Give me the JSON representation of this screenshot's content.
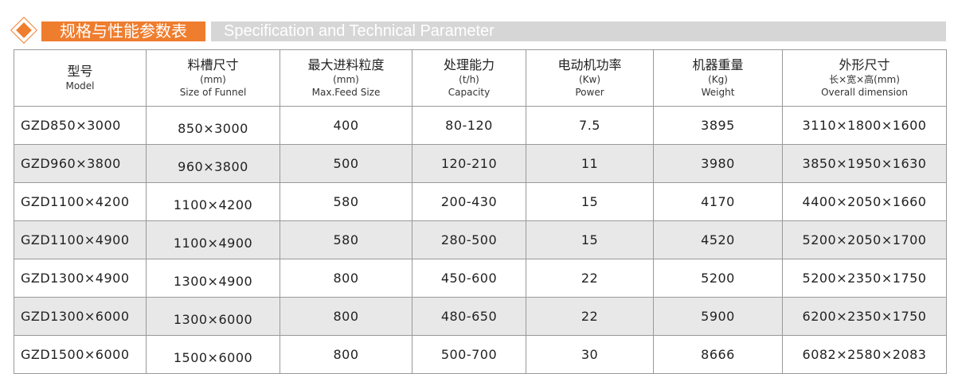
{
  "header": {
    "title_cn": "规格与性能参数表",
    "title_en": "Specification and Technical Parameter",
    "accent": "#ef7d2e"
  },
  "columns": [
    {
      "cn": "型号",
      "unit": "",
      "en": "Model"
    },
    {
      "cn": "料槽尺寸",
      "unit": "(mm)",
      "en": "Size of Funnel"
    },
    {
      "cn": "最大进料粒度",
      "unit": "(mm)",
      "en": "Max.Feed Size"
    },
    {
      "cn": "处理能力",
      "unit": "(t/h)",
      "en": "Capacity"
    },
    {
      "cn": "电动机功率",
      "unit": "(Kw)",
      "en": "Power"
    },
    {
      "cn": "机器重量",
      "unit": "(Kg)",
      "en": "Weight"
    },
    {
      "cn": "外形尺寸",
      "unit": "长×宽×高(mm)",
      "en": "Overall dimension"
    }
  ],
  "rows": [
    [
      "GZD850×3000",
      "850×3000",
      "400",
      "80-120",
      "7.5",
      "3895",
      "3110×1800×1600"
    ],
    [
      "GZD960×3800",
      "960×3800",
      "500",
      "120-210",
      "11",
      "3980",
      "3850×1950×1630"
    ],
    [
      "GZD1100×4200",
      "1100×4200",
      "580",
      "200-430",
      "15",
      "4170",
      "4400×2050×1660"
    ],
    [
      "GZD1100×4900",
      "1100×4900",
      "580",
      "280-500",
      "15",
      "4520",
      "5200×2050×1700"
    ],
    [
      "GZD1300×4900",
      "1300×4900",
      "800",
      "450-600",
      "22",
      "5200",
      "5200×2350×1750"
    ],
    [
      "GZD1300×6000",
      "1300×6000",
      "800",
      "480-650",
      "22",
      "5900",
      "6200×2350×1750"
    ],
    [
      "GZD1500×6000",
      "1500×6000",
      "800",
      "500-700",
      "30",
      "8666",
      "6082×2580×2083"
    ]
  ]
}
